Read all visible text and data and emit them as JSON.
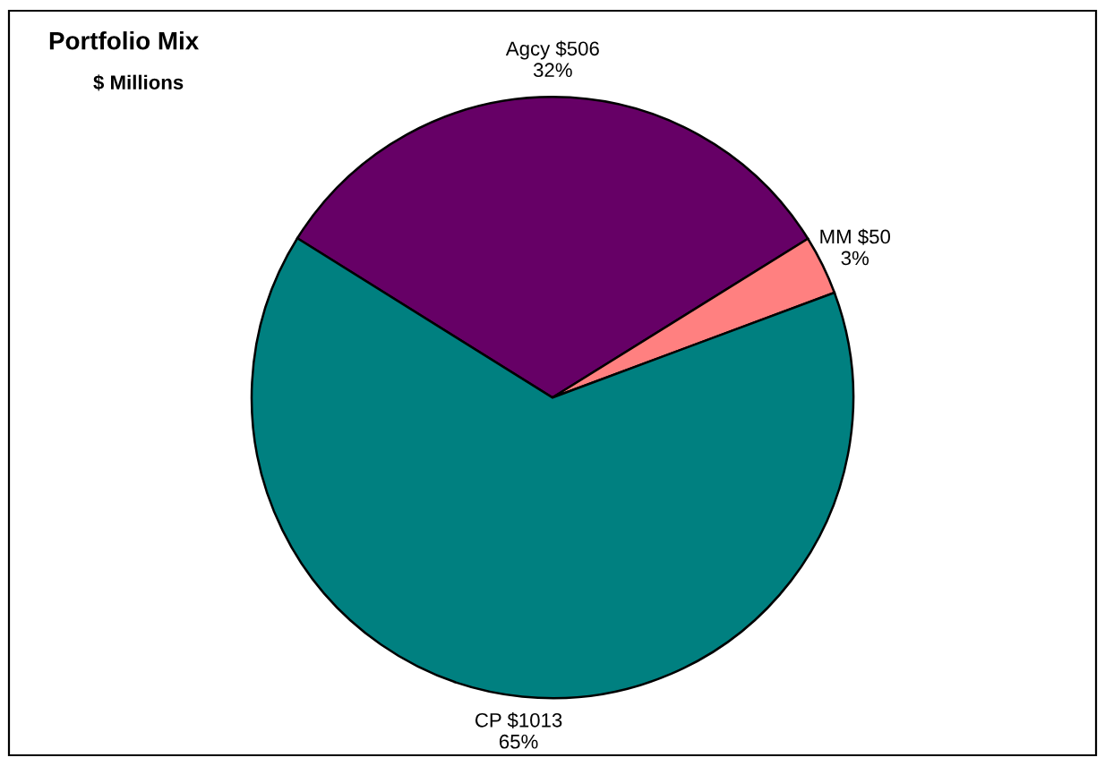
{
  "chart_data": {
    "type": "pie",
    "title": "Portfolio Mix",
    "subtitle": "$ Millions",
    "categories": [
      "Agcy",
      "MM",
      "CP"
    ],
    "values": [
      506,
      50,
      1013
    ],
    "value_labels": [
      "$506\n32%",
      "$50\n3%",
      "$1013\n65%"
    ],
    "colors": [
      "#660066",
      "#ff8080",
      "#008080"
    ],
    "legend": false
  }
}
